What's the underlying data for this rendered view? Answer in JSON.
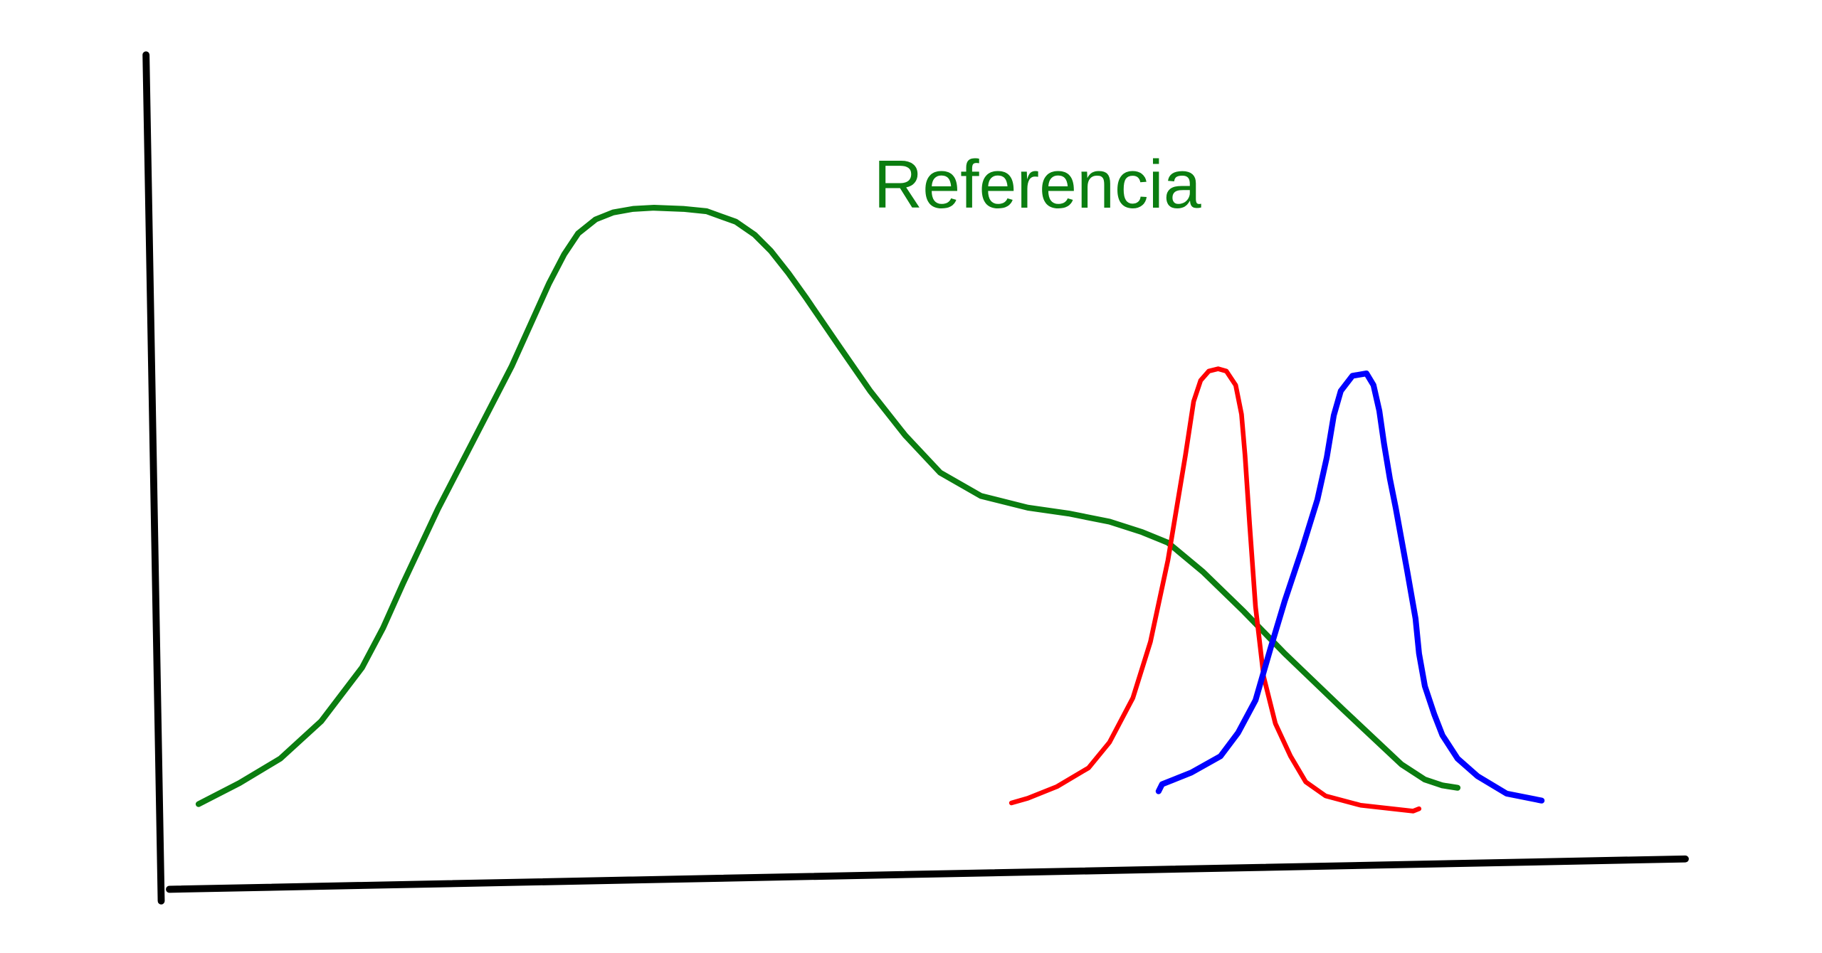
{
  "label": "Referencia"
}
